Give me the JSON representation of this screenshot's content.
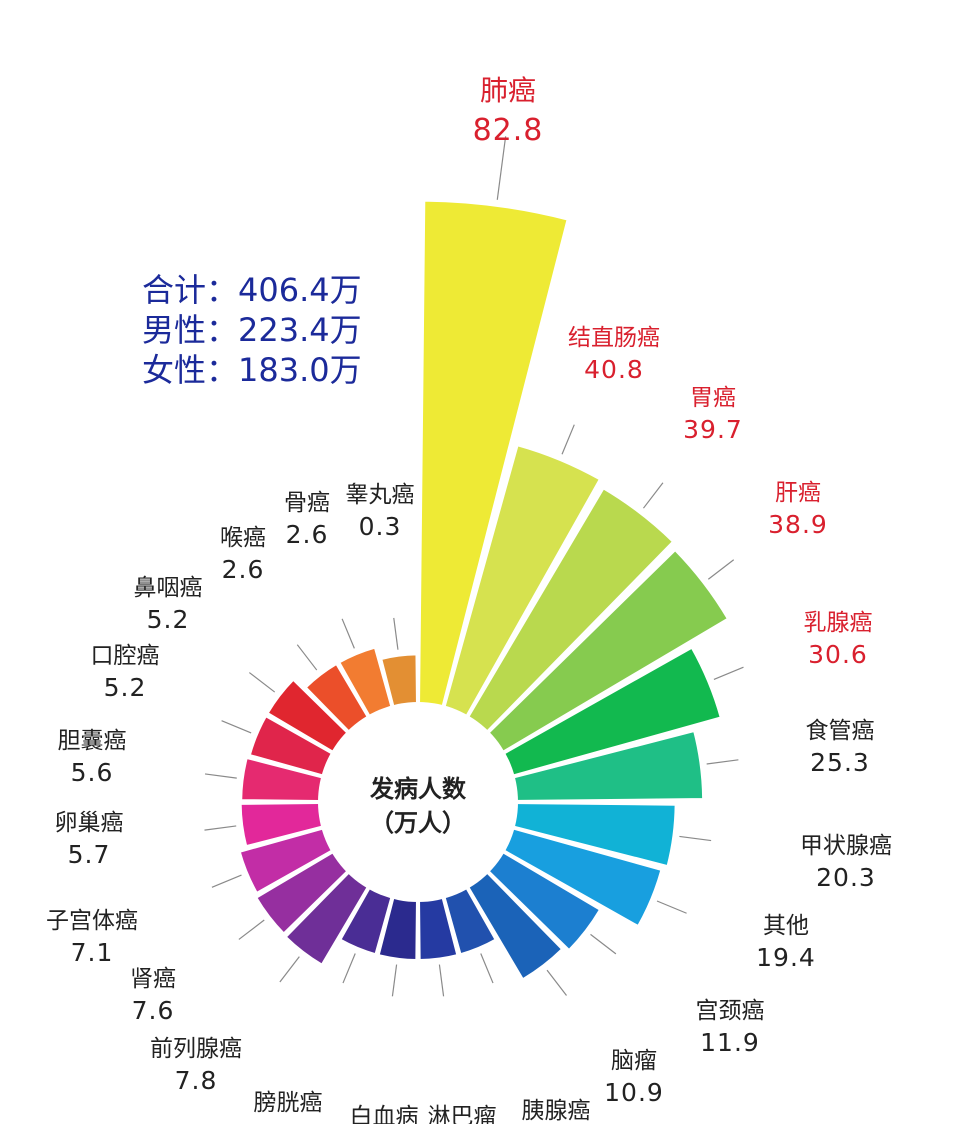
{
  "summary": {
    "total": "合计：406.4万",
    "male": "男性：223.4万",
    "female": "女性：183.0万"
  },
  "center_label": {
    "line1": "发病人数",
    "line2": "（万人）"
  },
  "chart_data": {
    "type": "polar-bar",
    "title": "",
    "unit": "万人",
    "categories": [
      "肺癌",
      "结直肠癌",
      "胃癌",
      "肝癌",
      "乳腺癌",
      "食管癌",
      "甲状腺癌",
      "其他",
      "宫颈癌",
      "脑瘤",
      "胰腺癌",
      "淋巴瘤",
      "白血病",
      "膀胱癌",
      "前列腺癌",
      "肾癌",
      "子宫体癌",
      "卵巢癌",
      "胆囊癌",
      "口腔癌",
      "鼻咽癌",
      "喉癌",
      "骨癌",
      "睾丸癌"
    ],
    "values": [
      82.8,
      40.8,
      39.7,
      38.9,
      30.6,
      25.3,
      20.3,
      19.4,
      11.9,
      10.9,
      null,
      null,
      null,
      null,
      7.8,
      7.6,
      7.1,
      5.7,
      5.6,
      5.2,
      5.2,
      2.6,
      2.6,
      0.3
    ],
    "value_labels": [
      "82.8",
      "40.8",
      "39.7",
      "38.9",
      "30.6",
      "25.3",
      "20.3",
      "19.4",
      "11.9",
      "10.9",
      "",
      "",
      "",
      "",
      "7.8",
      "7.6",
      "7.1",
      "5.7",
      "5.6",
      "5.2",
      "5.2",
      "2.6",
      "2.6",
      "0.3"
    ],
    "label_colors": [
      "#d9202e",
      "#d9202e",
      "#d9202e",
      "#d9202e",
      "#d9202e",
      "#222222",
      "#222222",
      "#222222",
      "#222222",
      "#222222",
      "#222222",
      "#222222",
      "#222222",
      "#222222",
      "#222222",
      "#222222",
      "#222222",
      "#222222",
      "#222222",
      "#222222",
      "#222222",
      "#222222",
      "#222222",
      "#222222"
    ],
    "bar_colors": [
      "#eeea35",
      "#d6e24f",
      "#b9d94e",
      "#86cb4f",
      "#12b94f",
      "#1fbf86",
      "#11b2d6",
      "#189fdf",
      "#1c7fd0",
      "#1b63b8",
      "#2151ae",
      "#253aa2",
      "#2b2a8e",
      "#4a2d95",
      "#6f2f98",
      "#962fa0",
      "#c22da6",
      "#e2289a",
      "#e52a70",
      "#e0254b",
      "#e0262f",
      "#eb4f2a",
      "#f27c31",
      "#e38f33"
    ]
  }
}
